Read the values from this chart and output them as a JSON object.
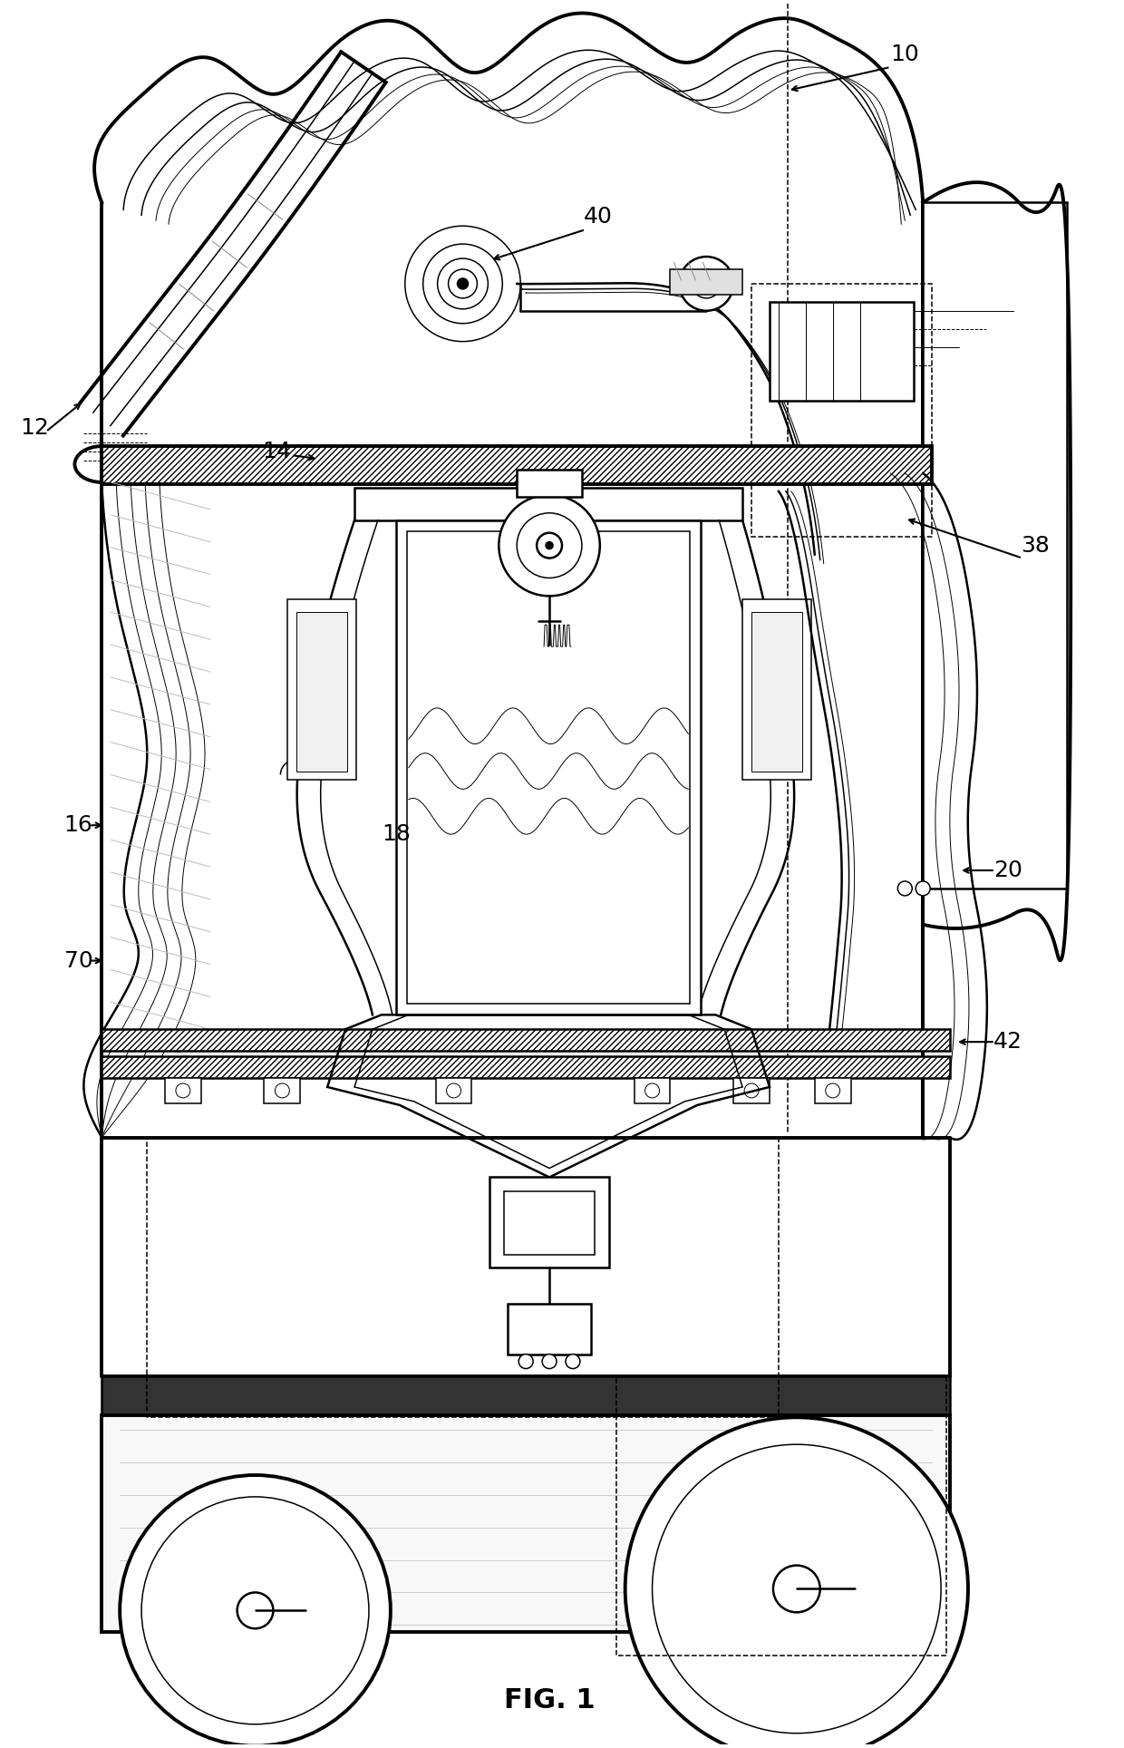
{
  "title": "FIG. 1",
  "bg_color": "#ffffff",
  "line_color": "#000000",
  "gray_color": "#aaaaaa",
  "lw_thick": 2.8,
  "lw_med": 1.8,
  "lw_thin": 1.1,
  "lw_hair": 0.7
}
